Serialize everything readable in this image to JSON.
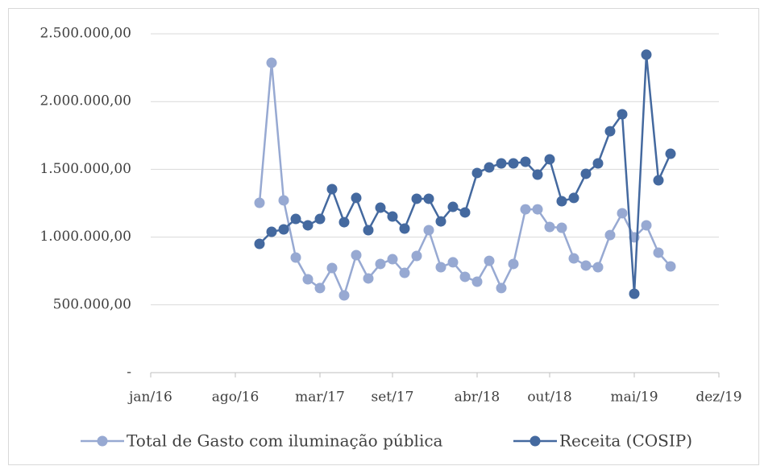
{
  "chart_data": {
    "type": "line",
    "x": [
      "2016-10",
      "2016-11",
      "2016-12",
      "2017-01",
      "2017-02",
      "2017-03",
      "2017-04",
      "2017-05",
      "2017-06",
      "2017-07",
      "2017-08",
      "2017-09",
      "2017-10",
      "2017-11",
      "2017-12",
      "2018-01",
      "2018-02",
      "2018-03",
      "2018-04",
      "2018-05",
      "2018-06",
      "2018-07",
      "2018-08",
      "2018-09",
      "2018-10",
      "2018-11",
      "2018-12",
      "2019-01",
      "2019-02",
      "2019-03",
      "2019-04",
      "2019-05",
      "2019-06",
      "2019-07",
      "2019-08"
    ],
    "series": [
      {
        "name": "Total de Gasto com iluminação pública",
        "color": "#97a9d2",
        "values": [
          1253000,
          2286000,
          1271000,
          849000,
          689000,
          624000,
          772000,
          570000,
          867000,
          695000,
          802000,
          837000,
          736000,
          861000,
          1051000,
          778000,
          814000,
          707000,
          671000,
          825000,
          624000,
          802000,
          1205000,
          1205000,
          1075000,
          1069000,
          843000,
          790000,
          778000,
          1015000,
          1176000,
          998000,
          1087000,
          885000,
          784000
        ]
      },
      {
        "name": "Receita (COSIP)",
        "color": "#44699f",
        "values": [
          950000,
          1039000,
          1057000,
          1134000,
          1087000,
          1134000,
          1354000,
          1110000,
          1289000,
          1051000,
          1217000,
          1152000,
          1063000,
          1283000,
          1283000,
          1116000,
          1223000,
          1182000,
          1473000,
          1514000,
          1544000,
          1544000,
          1556000,
          1461000,
          1574000,
          1265000,
          1289000,
          1467000,
          1544000,
          1781000,
          1906000,
          582000,
          2346000,
          1419000,
          1615000
        ]
      }
    ],
    "xlim": [
      "2016-01",
      "2019-12"
    ],
    "xticks": [
      {
        "value": "2016-01",
        "label": "jan/16"
      },
      {
        "value": "2016-08",
        "label": "ago/16"
      },
      {
        "value": "2017-03",
        "label": "mar/17"
      },
      {
        "value": "2017-09",
        "label": "set/17"
      },
      {
        "value": "2018-04",
        "label": "abr/18"
      },
      {
        "value": "2018-10",
        "label": "out/18"
      },
      {
        "value": "2019-05",
        "label": "mai/19"
      },
      {
        "value": "2019-12",
        "label": "dez/19"
      }
    ],
    "ylim": [
      0,
      2500000
    ],
    "yticks": [
      {
        "value": 0,
        "label": "-"
      },
      {
        "value": 500000,
        "label": "500.000,00"
      },
      {
        "value": 1000000,
        "label": "1.000.000,00"
      },
      {
        "value": 1500000,
        "label": "1.500.000,00"
      },
      {
        "value": 2000000,
        "label": "2.000.000,00"
      },
      {
        "value": 2500000,
        "label": "2.500.000,00"
      }
    ],
    "grid": true,
    "legend": "bottom"
  }
}
